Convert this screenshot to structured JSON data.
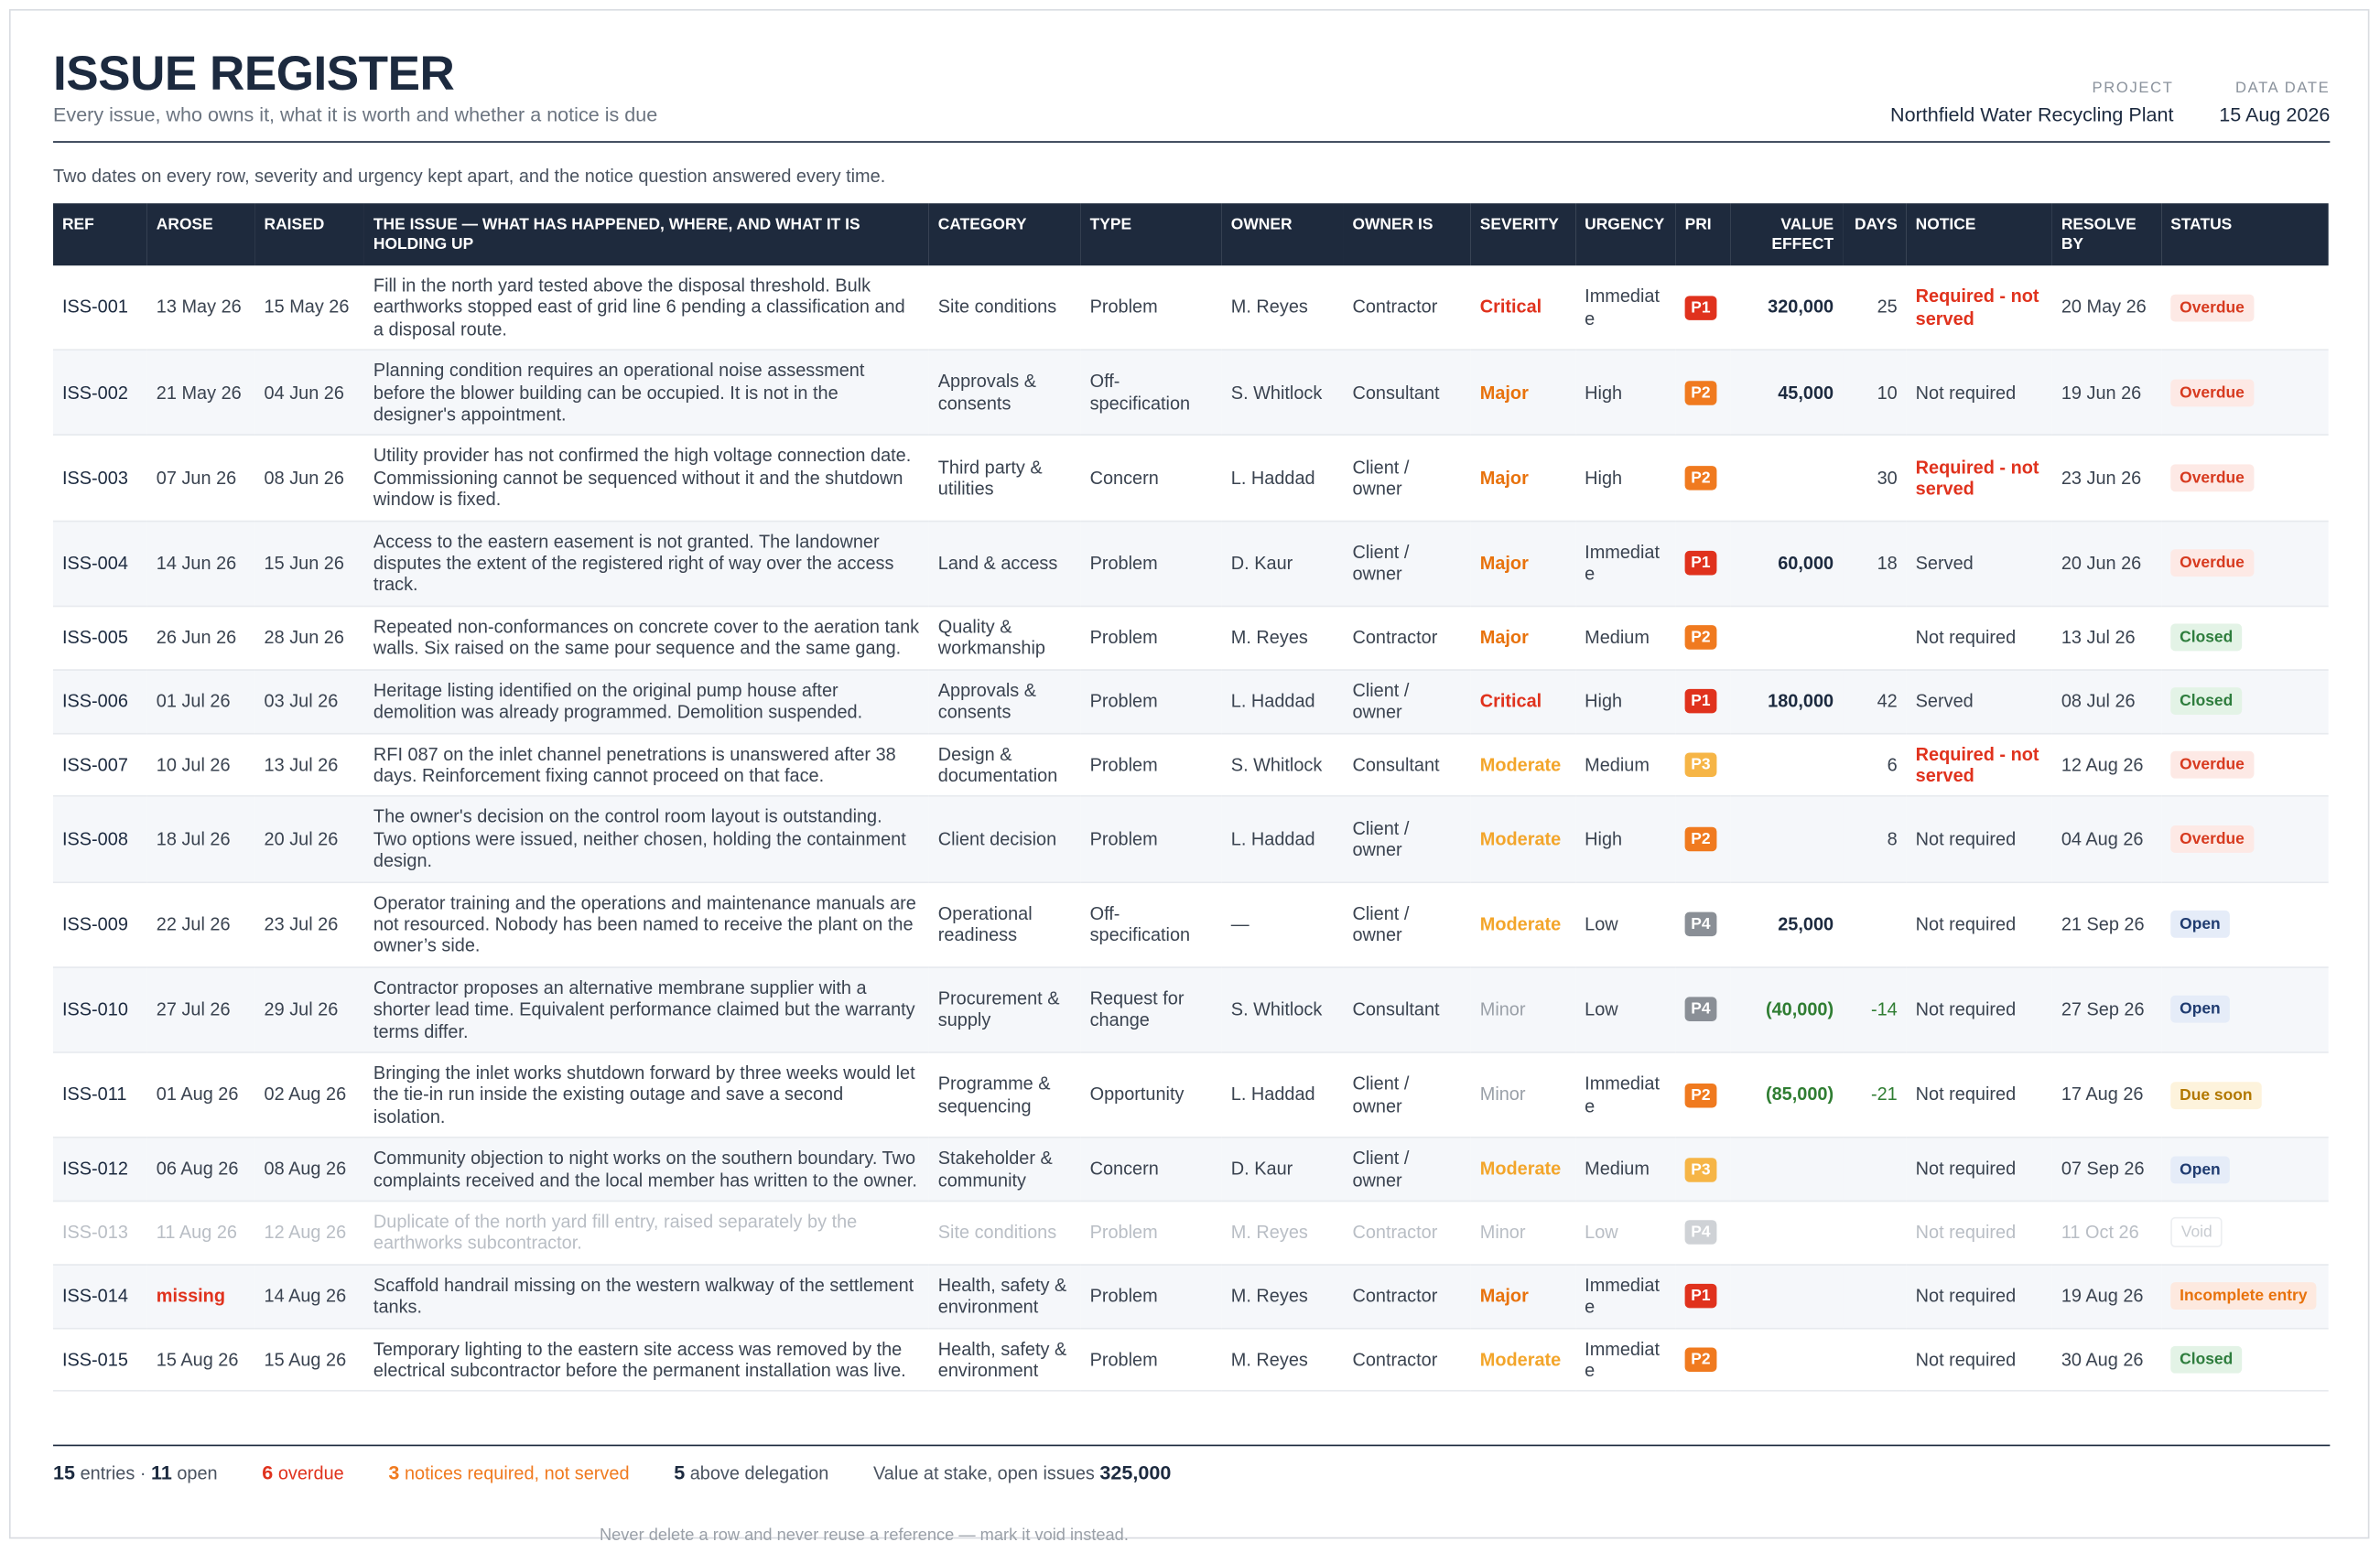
{
  "header": {
    "title": "ISSUE REGISTER",
    "subtitle": "Every issue, who owns it, what it is worth and whether a notice is due",
    "project_label": "PROJECT",
    "project": "Northfield Water Recycling Plant",
    "data_date_label": "DATA DATE",
    "data_date": "15 Aug 2026"
  },
  "intro": "Two dates on every row, severity and urgency kept apart, and the notice question answered every time.",
  "table": {
    "columns": [
      "REF",
      "AROSE",
      "RAISED",
      "THE ISSUE — WHAT HAS HAPPENED, WHERE, AND WHAT IT IS HOLDING UP",
      "CATEGORY",
      "TYPE",
      "OWNER",
      "OWNER IS",
      "SEVERITY",
      "URGENCY",
      "PRI",
      "VALUE EFFECT",
      "DAYS",
      "NOTICE",
      "RESOLVE BY",
      "STATUS"
    ],
    "rows": [
      [
        "ISS-001",
        "13 May 26",
        "15 May 26",
        "Fill in the north yard tested above the disposal threshold. Bulk earthworks stopped east of grid line 6 pending a classification and a disposal route.",
        "Site conditions",
        "Problem",
        "M. Reyes",
        "Contractor",
        "Critical",
        "Immediate",
        "P1",
        "320,000",
        25,
        "Required - not served",
        "20 May 26",
        "Overdue"
      ],
      [
        "ISS-002",
        "21 May 26",
        "04 Jun 26",
        "Planning condition requires an operational noise assessment before the blower building can be occupied. It is not in the designer's appointment.",
        "Approvals & consents",
        "Off-specification",
        "S. Whitlock",
        "Consultant",
        "Major",
        "High",
        "P2",
        "45,000",
        10,
        "Not required",
        "19 Jun 26",
        "Overdue"
      ],
      [
        "ISS-003",
        "07 Jun 26",
        "08 Jun 26",
        "Utility provider has not confirmed the high voltage connection date. Commissioning cannot be sequenced without it and the shutdown window is fixed.",
        "Third party & utilities",
        "Concern",
        "L. Haddad",
        "Client / owner",
        "Major",
        "High",
        "P2",
        null,
        30,
        "Required - not served",
        "23 Jun 26",
        "Overdue"
      ],
      [
        "ISS-004",
        "14 Jun 26",
        "15 Jun 26",
        "Access to the eastern easement is not granted. The landowner disputes the extent of the registered right of way over the access track.",
        "Land & access",
        "Problem",
        "D. Kaur",
        "Client / owner",
        "Major",
        "Immediate",
        "P1",
        "60,000",
        18,
        "Served",
        "20 Jun 26",
        "Overdue"
      ],
      [
        "ISS-005",
        "26 Jun 26",
        "28 Jun 26",
        "Repeated non-conformances on concrete cover to the aeration tank walls. Six raised on the same pour sequence and the same gang.",
        "Quality & workmanship",
        "Problem",
        "M. Reyes",
        "Contractor",
        "Major",
        "Medium",
        "P2",
        null,
        null,
        "Not required",
        "13 Jul 26",
        "Closed"
      ],
      [
        "ISS-006",
        "01 Jul 26",
        "03 Jul 26",
        "Heritage listing identified on the original pump house after demolition was already programmed. Demolition suspended.",
        "Approvals & consents",
        "Problem",
        "L. Haddad",
        "Client / owner",
        "Critical",
        "High",
        "P1",
        "180,000",
        42,
        "Served",
        "08 Jul 26",
        "Closed"
      ],
      [
        "ISS-007",
        "10 Jul 26",
        "13 Jul 26",
        "RFI 087 on the inlet channel penetrations is unanswered after 38 days. Reinforcement fixing cannot proceed on that face.",
        "Design & documentation",
        "Problem",
        "S. Whitlock",
        "Consultant",
        "Moderate",
        "Medium",
        "P3",
        null,
        6,
        "Required - not served",
        "12 Aug 26",
        "Overdue"
      ],
      [
        "ISS-008",
        "18 Jul 26",
        "20 Jul 26",
        "The owner's decision on the control room layout is outstanding. Two options were issued, neither chosen, holding the containment design.",
        "Client decision",
        "Problem",
        "L. Haddad",
        "Client / owner",
        "Moderate",
        "High",
        "P2",
        null,
        8,
        "Not required",
        "04 Aug 26",
        "Overdue"
      ],
      [
        "ISS-009",
        "22 Jul 26",
        "23 Jul 26",
        "Operator training and the operations and maintenance manuals are not resourced. Nobody has been named to receive the plant on the owner’s side.",
        "Operational readiness",
        "Off-specification",
        "—",
        "Client / owner",
        "Moderate",
        "Low",
        "P4",
        "25,000",
        null,
        "Not required",
        "21 Sep 26",
        "Open"
      ],
      [
        "ISS-010",
        "27 Jul 26",
        "29 Jul 26",
        "Contractor proposes an alternative membrane supplier with a shorter lead time. Equivalent performance claimed but the warranty terms differ.",
        "Procurement & supply",
        "Request for change",
        "S. Whitlock",
        "Consultant",
        "Minor",
        "Low",
        "P4",
        "(40,000)",
        -14,
        "Not required",
        "27 Sep 26",
        "Open"
      ],
      [
        "ISS-011",
        "01 Aug 26",
        "02 Aug 26",
        "Bringing the inlet works shutdown forward by three weeks would let the tie-in run inside the existing outage and save a second isolation.",
        "Programme & sequencing",
        "Opportunity",
        "L. Haddad",
        "Client / owner",
        "Minor",
        "Immediate",
        "P2",
        "(85,000)",
        -21,
        "Not required",
        "17 Aug 26",
        "Due soon"
      ],
      [
        "ISS-012",
        "06 Aug 26",
        "08 Aug 26",
        "Community objection to night works on the southern boundary. Two complaints received and the local member has written to the owner.",
        "Stakeholder & community",
        "Concern",
        "D. Kaur",
        "Client / owner",
        "Moderate",
        "Medium",
        "P3",
        null,
        null,
        "Not required",
        "07 Sep 26",
        "Open"
      ],
      [
        "ISS-013",
        "11 Aug 26",
        "12 Aug 26",
        "Duplicate of the north yard fill entry, raised separately by the earthworks subcontractor.",
        "Site conditions",
        "Problem",
        "M. Reyes",
        "Contractor",
        "Minor",
        "Low",
        "P4",
        null,
        null,
        "Not required",
        "11 Oct 26",
        "Void"
      ],
      [
        "ISS-014",
        "missing",
        "14 Aug 26",
        "Scaffold handrail missing on the western walkway of the settlement tanks.",
        "Health, safety & environment",
        "Problem",
        "M. Reyes",
        "Contractor",
        "Major",
        "Immediate",
        "P1",
        null,
        null,
        "Not required",
        "19 Aug 26",
        "Incomplete entry"
      ],
      [
        "ISS-015",
        "15 Aug 26",
        "15 Aug 26",
        "Temporary lighting to the eastern site access was removed by the electrical subcontractor before the permanent installation was live.",
        "Health, safety & environment",
        "Problem",
        "M. Reyes",
        "Contractor",
        "Moderate",
        "Immediate",
        "P2",
        null,
        null,
        "Not required",
        "30 Aug 26",
        "Closed"
      ]
    ]
  },
  "footer": {
    "stats": [
      {
        "value": 15,
        "text": "entries ·"
      },
      {
        "value": 11,
        "text": "open"
      },
      {
        "value": 6,
        "text": "overdue"
      },
      {
        "value": 3,
        "text": "notices required, not served"
      },
      {
        "value": 5,
        "text": "above delegation"
      }
    ],
    "stake_label": "Value at stake, open issues",
    "stake_value": "325,000",
    "note": "Never delete a row and never reuse a reference — mark it void instead."
  }
}
